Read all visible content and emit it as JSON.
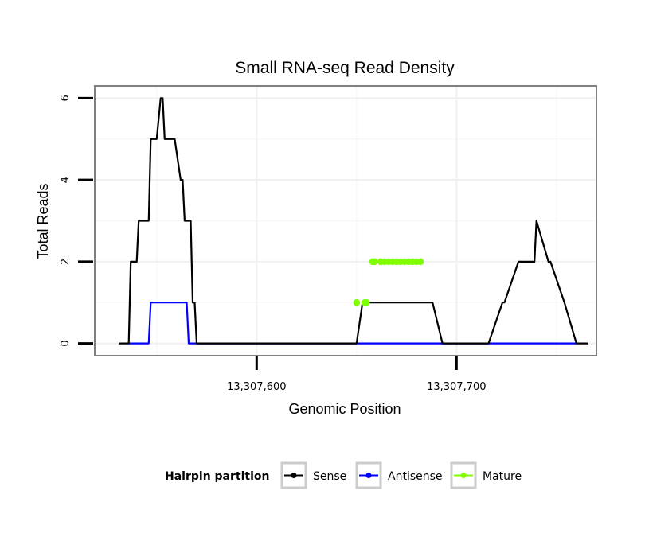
{
  "chart_data": {
    "type": "line",
    "title": "Small RNA-seq Read Density",
    "xlabel": "Genomic Position",
    "ylabel": "Total Reads",
    "xlim": [
      13307519,
      13307770
    ],
    "ylim": [
      -0.3,
      6.3
    ],
    "x_ticks": [
      13307600,
      13307700
    ],
    "x_tick_labels": [
      "13,307,600",
      "13,307,700"
    ],
    "y_ticks": [
      0,
      2,
      4,
      6
    ],
    "y_tick_labels": [
      "0",
      "2",
      "4",
      "6"
    ],
    "grid": true,
    "legend": {
      "title": "Hairpin partition",
      "placement": "bottom"
    },
    "series": [
      {
        "name": "Sense",
        "color": "#000000",
        "x": [
          13307531,
          13307536,
          13307537,
          13307540,
          13307541,
          13307546,
          13307547,
          13307550,
          13307552,
          13307553,
          13307554,
          13307559,
          13307562,
          13307563,
          13307564,
          13307567,
          13307568,
          13307569,
          13307570,
          13307573,
          13307574,
          13307577,
          13307650,
          13307653,
          13307688,
          13307693,
          13307716,
          13307723,
          13307724,
          13307731,
          13307739,
          13307740,
          13307746,
          13307747,
          13307754,
          13307760,
          13307766
        ],
        "y": [
          0,
          0,
          2,
          2,
          3,
          3,
          5,
          5,
          6,
          6,
          5,
          5,
          4,
          4,
          3,
          3,
          1,
          1,
          0,
          0,
          0,
          0,
          0,
          1,
          1,
          0,
          0,
          1,
          1,
          2,
          2,
          3,
          2,
          2,
          1,
          0,
          0
        ]
      },
      {
        "name": "Antisense",
        "color": "#0000ff",
        "x": [
          13307536,
          13307546,
          13307547,
          13307565,
          13307566,
          13307760
        ],
        "y": [
          0,
          0,
          1,
          1,
          0,
          0
        ]
      },
      {
        "name": "Mature",
        "color": "#7fff00",
        "x": [
          13307650,
          13307654,
          13307655,
          13307658,
          13307659,
          13307662,
          13307664,
          13307666,
          13307668,
          13307670,
          13307672,
          13307674,
          13307676,
          13307678,
          13307680,
          13307682
        ],
        "y": [
          1,
          1,
          1,
          2,
          2,
          2,
          2,
          2,
          2,
          2,
          2,
          2,
          2,
          2,
          2,
          2
        ]
      }
    ]
  }
}
